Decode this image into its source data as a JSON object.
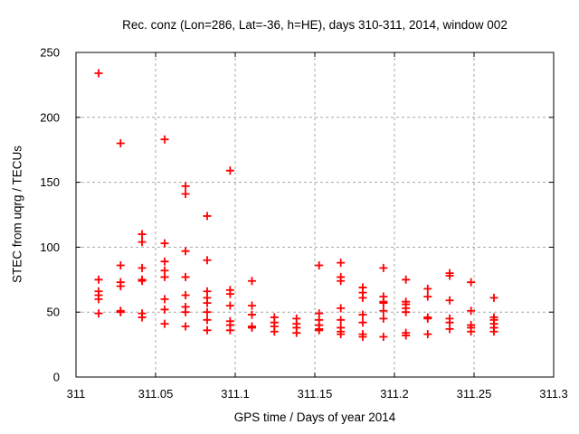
{
  "chart_data": {
    "type": "scatter",
    "title": "Rec. conz (Lon=286, Lat=-36, h=HE), days 310-311, 2014, window 002",
    "xlabel": "GPS time / Days of year 2014",
    "ylabel": "STEC from uqrg / TECUs",
    "xlim": [
      311,
      311.3
    ],
    "ylim": [
      0,
      250
    ],
    "xtick_values": [
      311,
      311.05,
      311.1,
      311.15,
      311.2,
      311.25,
      311.3
    ],
    "xtick_labels": [
      "311",
      "311.05",
      "311.1",
      "311.15",
      "311.2",
      "311.25",
      "311.3"
    ],
    "ytick_values": [
      0,
      50,
      100,
      150,
      200,
      250
    ],
    "ytick_labels": [
      "0",
      "50",
      "100",
      "150",
      "200",
      "250"
    ],
    "grid": true,
    "legend": "none",
    "marker": "plus",
    "marker_color": "#ff0000",
    "grid_color": "#a8a8a8",
    "axis_color": "#000000",
    "series": [
      {
        "name": "STEC",
        "points": [
          [
            311.0142,
            234
          ],
          [
            311.0142,
            75
          ],
          [
            311.0142,
            66
          ],
          [
            311.0142,
            63
          ],
          [
            311.0142,
            60
          ],
          [
            311.0142,
            49
          ],
          [
            311.028,
            180
          ],
          [
            311.028,
            86
          ],
          [
            311.028,
            73
          ],
          [
            311.028,
            70
          ],
          [
            311.028,
            51
          ],
          [
            311.028,
            50
          ],
          [
            311.0415,
            110
          ],
          [
            311.0415,
            104
          ],
          [
            311.0415,
            84
          ],
          [
            311.0415,
            75
          ],
          [
            311.0415,
            74
          ],
          [
            311.0415,
            49
          ],
          [
            311.0415,
            46
          ],
          [
            311.0557,
            183
          ],
          [
            311.0557,
            103
          ],
          [
            311.0557,
            89
          ],
          [
            311.0557,
            82
          ],
          [
            311.0557,
            77
          ],
          [
            311.0557,
            60
          ],
          [
            311.0557,
            52
          ],
          [
            311.0557,
            41
          ],
          [
            311.0688,
            147
          ],
          [
            311.0688,
            141
          ],
          [
            311.0688,
            97
          ],
          [
            311.0688,
            77
          ],
          [
            311.0688,
            63
          ],
          [
            311.0688,
            54
          ],
          [
            311.0688,
            50
          ],
          [
            311.0688,
            39
          ],
          [
            311.0824,
            124
          ],
          [
            311.0824,
            90
          ],
          [
            311.0824,
            66
          ],
          [
            311.0824,
            61
          ],
          [
            311.0824,
            57
          ],
          [
            311.0824,
            50
          ],
          [
            311.0824,
            44
          ],
          [
            311.0824,
            36
          ],
          [
            311.0968,
            159
          ],
          [
            311.0968,
            67
          ],
          [
            311.0968,
            64
          ],
          [
            311.0968,
            55
          ],
          [
            311.0968,
            43
          ],
          [
            311.0968,
            40
          ],
          [
            311.0968,
            36
          ],
          [
            311.1105,
            74
          ],
          [
            311.1105,
            55
          ],
          [
            311.1105,
            48
          ],
          [
            311.1105,
            39
          ],
          [
            311.1105,
            38
          ],
          [
            311.1246,
            46
          ],
          [
            311.1246,
            42
          ],
          [
            311.1246,
            39
          ],
          [
            311.1246,
            35
          ],
          [
            311.1385,
            45
          ],
          [
            311.1385,
            41
          ],
          [
            311.1385,
            38
          ],
          [
            311.1385,
            34
          ],
          [
            311.1527,
            86
          ],
          [
            311.1527,
            49
          ],
          [
            311.1527,
            44
          ],
          [
            311.1527,
            40
          ],
          [
            311.1527,
            37
          ],
          [
            311.1527,
            36
          ],
          [
            311.1663,
            88
          ],
          [
            311.1663,
            77
          ],
          [
            311.1663,
            74
          ],
          [
            311.1663,
            53
          ],
          [
            311.1663,
            44
          ],
          [
            311.1663,
            38
          ],
          [
            311.1663,
            35
          ],
          [
            311.1663,
            33
          ],
          [
            311.1801,
            69
          ],
          [
            311.1801,
            65
          ],
          [
            311.1801,
            61
          ],
          [
            311.1801,
            48
          ],
          [
            311.1801,
            42
          ],
          [
            311.1801,
            33
          ],
          [
            311.1801,
            31
          ],
          [
            311.1931,
            84
          ],
          [
            311.1931,
            62
          ],
          [
            311.1931,
            58
          ],
          [
            311.1931,
            57
          ],
          [
            311.1931,
            51
          ],
          [
            311.1931,
            45
          ],
          [
            311.1931,
            31
          ],
          [
            311.2072,
            75
          ],
          [
            311.2072,
            58
          ],
          [
            311.2072,
            56
          ],
          [
            311.2072,
            53
          ],
          [
            311.2072,
            50
          ],
          [
            311.2072,
            34
          ],
          [
            311.2072,
            32
          ],
          [
            311.2209,
            68
          ],
          [
            311.2209,
            62
          ],
          [
            311.2209,
            46
          ],
          [
            311.2209,
            45
          ],
          [
            311.2209,
            33
          ],
          [
            311.2347,
            80
          ],
          [
            311.2347,
            78
          ],
          [
            311.2347,
            59
          ],
          [
            311.2347,
            45
          ],
          [
            311.2347,
            42
          ],
          [
            311.2347,
            37
          ],
          [
            311.2481,
            73
          ],
          [
            311.2481,
            51
          ],
          [
            311.2481,
            40
          ],
          [
            311.2481,
            38
          ],
          [
            311.2481,
            35
          ],
          [
            311.2625,
            61
          ],
          [
            311.2625,
            46
          ],
          [
            311.2625,
            44
          ],
          [
            311.2625,
            41
          ],
          [
            311.2625,
            38
          ],
          [
            311.2625,
            35
          ]
        ]
      }
    ]
  }
}
